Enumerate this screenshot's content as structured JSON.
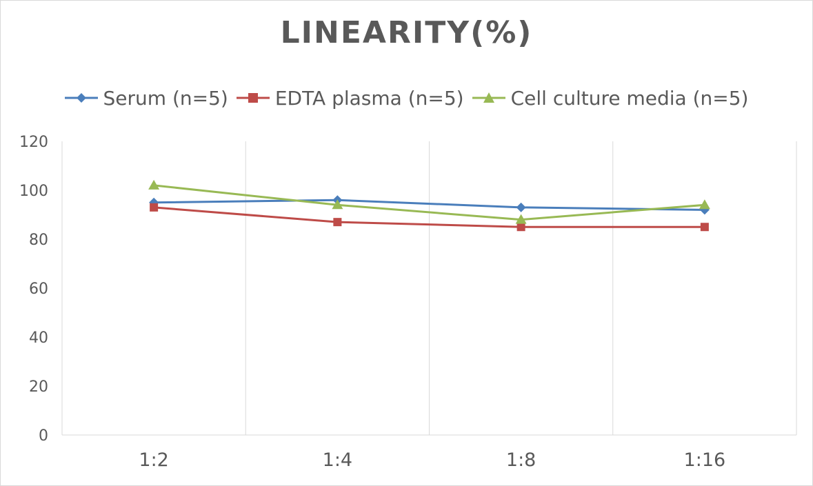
{
  "chart_data": {
    "type": "line",
    "title": "LINEARITY(%)",
    "xlabel": "",
    "ylabel": "",
    "categories": [
      "1:2",
      "1:4",
      "1:8",
      "1:16"
    ],
    "ylim": [
      0,
      120
    ],
    "yticks": [
      0,
      20,
      40,
      60,
      80,
      100,
      120
    ],
    "grid": "vertical",
    "legend_position": "top",
    "series": [
      {
        "name": "Serum (n=5)",
        "values": [
          95,
          96,
          93,
          92
        ],
        "color": "#4a7ebb",
        "marker": "diamond"
      },
      {
        "name": "EDTA plasma (n=5)",
        "values": [
          93,
          87,
          85,
          85
        ],
        "color": "#be4b48",
        "marker": "square"
      },
      {
        "name": "Cell culture media (n=5)",
        "values": [
          102,
          94,
          88,
          94
        ],
        "color": "#98b954",
        "marker": "triangle"
      }
    ]
  }
}
